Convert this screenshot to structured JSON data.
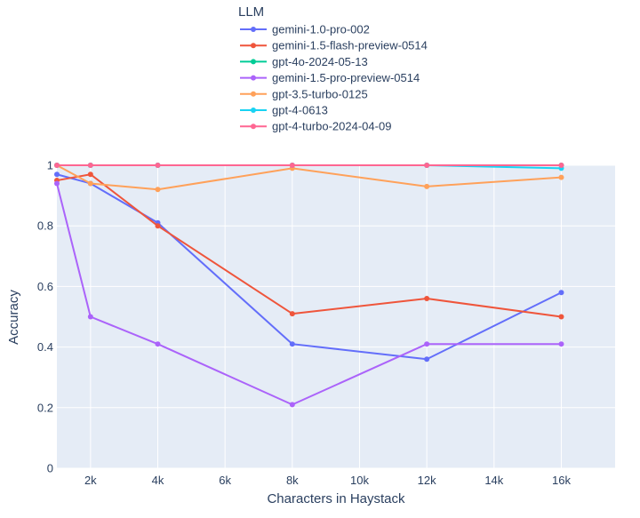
{
  "chart_data": {
    "type": "line",
    "title": "",
    "xlabel": "Characters in Haystack",
    "ylabel": "Accuracy",
    "xlim": [
      1000,
      17600
    ],
    "ylim": [
      0,
      1
    ],
    "x_ticks": [
      2000,
      4000,
      6000,
      8000,
      10000,
      12000,
      14000,
      16000
    ],
    "x_tick_labels": [
      "2k",
      "4k",
      "6k",
      "8k",
      "10k",
      "12k",
      "14k",
      "16k"
    ],
    "y_ticks": [
      0,
      0.2,
      0.4,
      0.6,
      0.8,
      1
    ],
    "y_tick_labels": [
      "0",
      "0.2",
      "0.4",
      "0.6",
      "0.8",
      "1"
    ],
    "grid": true,
    "legend": {
      "title": "LLM",
      "placement": "top"
    },
    "x": [
      1000,
      2000,
      4000,
      8000,
      12000,
      16000
    ],
    "series": [
      {
        "name": "gemini-1.0-pro-002",
        "color": "#636efa",
        "values": [
          0.97,
          0.94,
          0.81,
          0.41,
          0.36,
          0.58
        ]
      },
      {
        "name": "gemini-1.5-flash-preview-0514",
        "color": "#ef553b",
        "values": [
          0.95,
          0.97,
          0.8,
          0.51,
          0.56,
          0.5
        ]
      },
      {
        "name": "gpt-4o-2024-05-13",
        "color": "#00cc96",
        "values": [
          1.0,
          1.0,
          1.0,
          1.0,
          1.0,
          1.0
        ]
      },
      {
        "name": "gemini-1.5-pro-preview-0514",
        "color": "#ab63fa",
        "values": [
          0.94,
          0.5,
          0.41,
          0.21,
          0.41,
          0.41
        ]
      },
      {
        "name": "gpt-3.5-turbo-0125",
        "color": "#ffa15a",
        "values": [
          1.0,
          0.94,
          0.92,
          0.99,
          0.93,
          0.96
        ]
      },
      {
        "name": "gpt-4-0613",
        "color": "#19d3f3",
        "values": [
          1.0,
          1.0,
          1.0,
          1.0,
          1.0,
          0.99
        ]
      },
      {
        "name": "gpt-4-turbo-2024-04-09",
        "color": "#ff6692",
        "values": [
          1.0,
          1.0,
          1.0,
          1.0,
          1.0,
          1.0
        ]
      }
    ]
  }
}
